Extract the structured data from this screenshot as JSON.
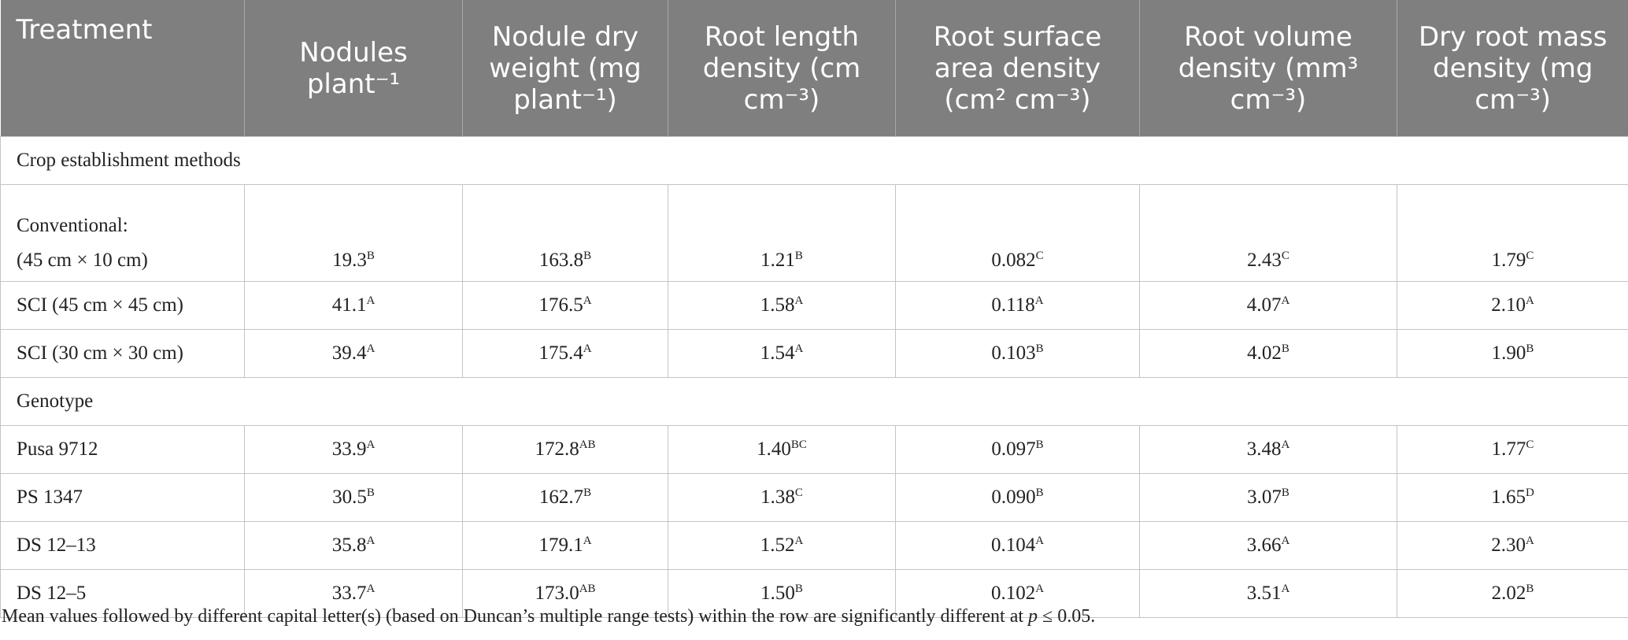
{
  "table": {
    "header": [
      "Treatment",
      "Nodules plant⁻¹",
      "Nodule dry weight (mg plant⁻¹)",
      "Root length density (cm cm⁻³)",
      "Root surface area density (cm² cm⁻³)",
      "Root volume density (mm³ cm⁻³)",
      "Dry root mass density (mg cm⁻³)"
    ],
    "sections": [
      {
        "title": "Crop establishment methods",
        "rows": [
          {
            "label": [
              "Conventional:",
              "(45 cm × 10 cm)"
            ],
            "cells": [
              {
                "value": "19.3",
                "sig": "B"
              },
              {
                "value": "163.8",
                "sig": "B"
              },
              {
                "value": "1.21",
                "sig": "B"
              },
              {
                "value": "0.082",
                "sig": "C"
              },
              {
                "value": "2.43",
                "sig": "C"
              },
              {
                "value": "1.79",
                "sig": "C"
              }
            ]
          },
          {
            "label": [
              "SCI (45 cm × 45 cm)"
            ],
            "cells": [
              {
                "value": "41.1",
                "sig": "A"
              },
              {
                "value": "176.5",
                "sig": "A"
              },
              {
                "value": "1.58",
                "sig": "A"
              },
              {
                "value": "0.118",
                "sig": "A"
              },
              {
                "value": "4.07",
                "sig": "A"
              },
              {
                "value": "2.10",
                "sig": "A"
              }
            ]
          },
          {
            "label": [
              "SCI (30 cm × 30 cm)"
            ],
            "cells": [
              {
                "value": "39.4",
                "sig": "A"
              },
              {
                "value": "175.4",
                "sig": "A"
              },
              {
                "value": "1.54",
                "sig": "A"
              },
              {
                "value": "0.103",
                "sig": "B"
              },
              {
                "value": "4.02",
                "sig": "B"
              },
              {
                "value": "1.90",
                "sig": "B"
              }
            ]
          }
        ]
      },
      {
        "title": "Genotype",
        "rows": [
          {
            "label": [
              "Pusa 9712"
            ],
            "cells": [
              {
                "value": "33.9",
                "sig": "A"
              },
              {
                "value": "172.8",
                "sig": "AB"
              },
              {
                "value": "1.40",
                "sig": "BC"
              },
              {
                "value": "0.097",
                "sig": "B"
              },
              {
                "value": "3.48",
                "sig": "A"
              },
              {
                "value": "1.77",
                "sig": "C"
              }
            ]
          },
          {
            "label": [
              "PS 1347"
            ],
            "cells": [
              {
                "value": "30.5",
                "sig": "B"
              },
              {
                "value": "162.7",
                "sig": "B"
              },
              {
                "value": "1.38",
                "sig": "C"
              },
              {
                "value": "0.090",
                "sig": "B"
              },
              {
                "value": "3.07",
                "sig": "B"
              },
              {
                "value": "1.65",
                "sig": "D"
              }
            ]
          },
          {
            "label": [
              "DS 12–13"
            ],
            "cells": [
              {
                "value": "35.8",
                "sig": "A"
              },
              {
                "value": "179.1",
                "sig": "A"
              },
              {
                "value": "1.52",
                "sig": "A"
              },
              {
                "value": "0.104",
                "sig": "A"
              },
              {
                "value": "3.66",
                "sig": "A"
              },
              {
                "value": "2.30",
                "sig": "A"
              }
            ]
          },
          {
            "label": [
              "DS 12–5"
            ],
            "cells": [
              {
                "value": "33.7",
                "sig": "A"
              },
              {
                "value": "173.0",
                "sig": "AB"
              },
              {
                "value": "1.50",
                "sig": "B"
              },
              {
                "value": "0.102",
                "sig": "A"
              },
              {
                "value": "3.51",
                "sig": "A"
              },
              {
                "value": "2.02",
                "sig": "B"
              }
            ]
          }
        ]
      }
    ],
    "note": {
      "before": "Mean values followed by different capital letter(s) (based on Duncan’s multiple range tests) within the row are significantly different at ",
      "p": "p",
      "after": " ≤ 0.05."
    }
  }
}
